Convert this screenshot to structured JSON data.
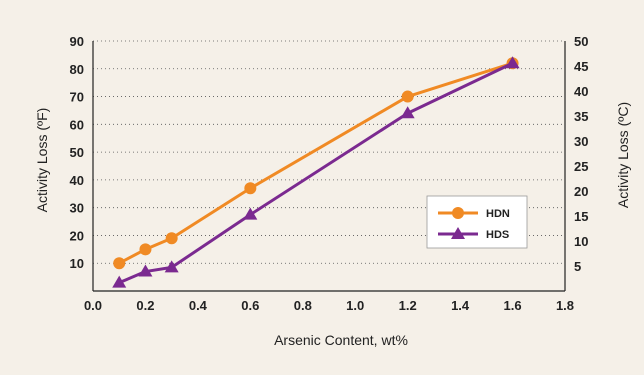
{
  "chart_data": {
    "type": "line",
    "xlabel": "Arsenic Content, wt%",
    "ylabel_left": "Activity Loss (ºF)",
    "ylabel_right": "Activity Loss (ºC)",
    "xlim": [
      0.0,
      1.8
    ],
    "ylim_left": [
      0,
      90
    ],
    "ylim_right": [
      0,
      50
    ],
    "x_ticks": [
      "0.0",
      "0.2",
      "0.4",
      "0.6",
      "0.8",
      "1.0",
      "1.2",
      "1.4",
      "1.6",
      "1.8"
    ],
    "y_left_ticks": [
      "10",
      "20",
      "30",
      "40",
      "50",
      "60",
      "70",
      "80",
      "90"
    ],
    "y_right_ticks": [
      "5",
      "10",
      "15",
      "20",
      "25",
      "30",
      "35",
      "40",
      "45",
      "50"
    ],
    "grid": "horizontal dotted",
    "legend_position": "lower-right",
    "series": [
      {
        "name": "HDN",
        "color": "#f08a24",
        "marker": "circle",
        "x": [
          0.1,
          0.2,
          0.3,
          0.6,
          1.2,
          1.6
        ],
        "y": [
          10,
          15,
          19,
          37,
          70,
          82
        ]
      },
      {
        "name": "HDS",
        "color": "#7b2a90",
        "marker": "triangle",
        "x": [
          0.1,
          0.2,
          0.3,
          0.6,
          1.2,
          1.6
        ],
        "y": [
          3,
          7,
          8.5,
          27.5,
          64,
          82
        ]
      }
    ]
  }
}
